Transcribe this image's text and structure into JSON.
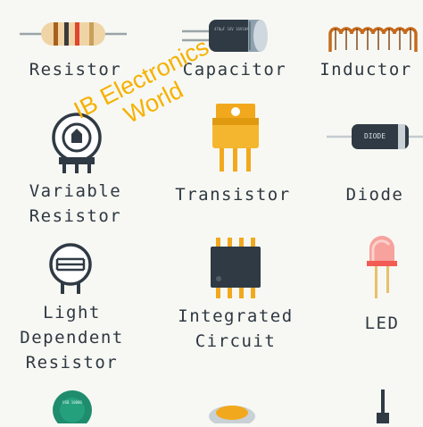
{
  "components": [
    {
      "key": "resistor",
      "label": "Resistor"
    },
    {
      "key": "capacitor",
      "label": "Capacitor",
      "marking": "470μF 16V 16V10A"
    },
    {
      "key": "inductor",
      "label": "Inductor"
    },
    {
      "key": "variable_resistor",
      "label_lines": [
        "Variable",
        "Resistor"
      ]
    },
    {
      "key": "transistor",
      "label": "Transistor"
    },
    {
      "key": "diode",
      "label": "Diode",
      "marking": "DIODE"
    },
    {
      "key": "ldr",
      "label_lines": [
        "Light",
        "Dependent",
        "Resistor"
      ]
    },
    {
      "key": "ic",
      "label_lines": [
        "Integrated",
        "Circuit"
      ]
    },
    {
      "key": "led",
      "label": "LED"
    },
    {
      "key": "partial_1",
      "marking": "USB 10000"
    }
  ],
  "watermark": {
    "line1": "IB Electronics",
    "line2": "World"
  },
  "colors": {
    "background": "#f7f8f3",
    "text": "#2e3741",
    "watermark": "#f5b100",
    "resistor_body": "#efd4a6",
    "capacitor_body": "#2f3a44",
    "inductor_wire": "#c56a1d",
    "transistor_body": "#f2a81d",
    "led_red": "#f25c54"
  }
}
